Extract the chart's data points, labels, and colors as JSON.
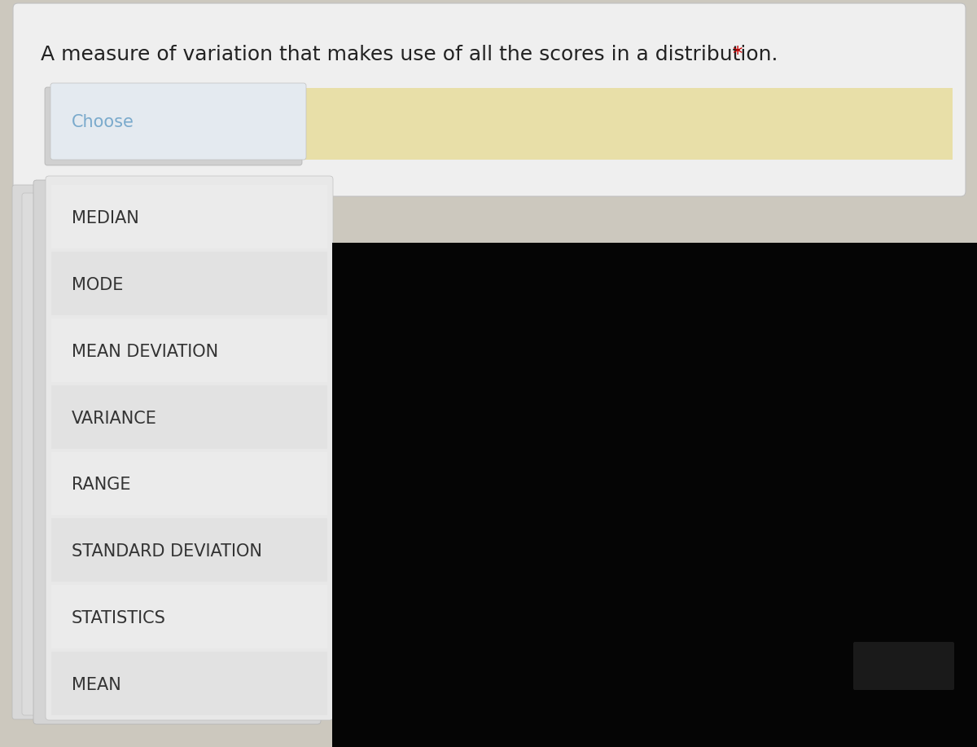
{
  "question": "A measure of variation that makes use of all the scores in a distribution.",
  "asterisk": " *",
  "asterisk_color": "#cc0000",
  "question_color": "#222222",
  "question_fontsize": 18,
  "choose_label": "Choose",
  "choose_color": "#7aaacc",
  "choose_fontsize": 15,
  "options": [
    "MEDIAN",
    "MODE",
    "MEAN DEVIATION",
    "VARIANCE",
    "RANGE",
    "STANDARD DEVIATION",
    "STATISTICS",
    "MEAN"
  ],
  "options_fontsize": 15,
  "options_color": "#333333",
  "bg_color": "#ccc8be",
  "main_card_color": "#efefef",
  "dropdown_header_color": "#e4eaf0",
  "options_card_color": "#e8e8e8",
  "options_card_back_color": "#d5d5d5",
  "row_even_color": "#e9e9e9",
  "row_odd_color": "#e2e2e2",
  "black_panel_color": "#050505",
  "cream_strip_color": "#e8dfa8",
  "left_tab_color": "#d0d0d0"
}
